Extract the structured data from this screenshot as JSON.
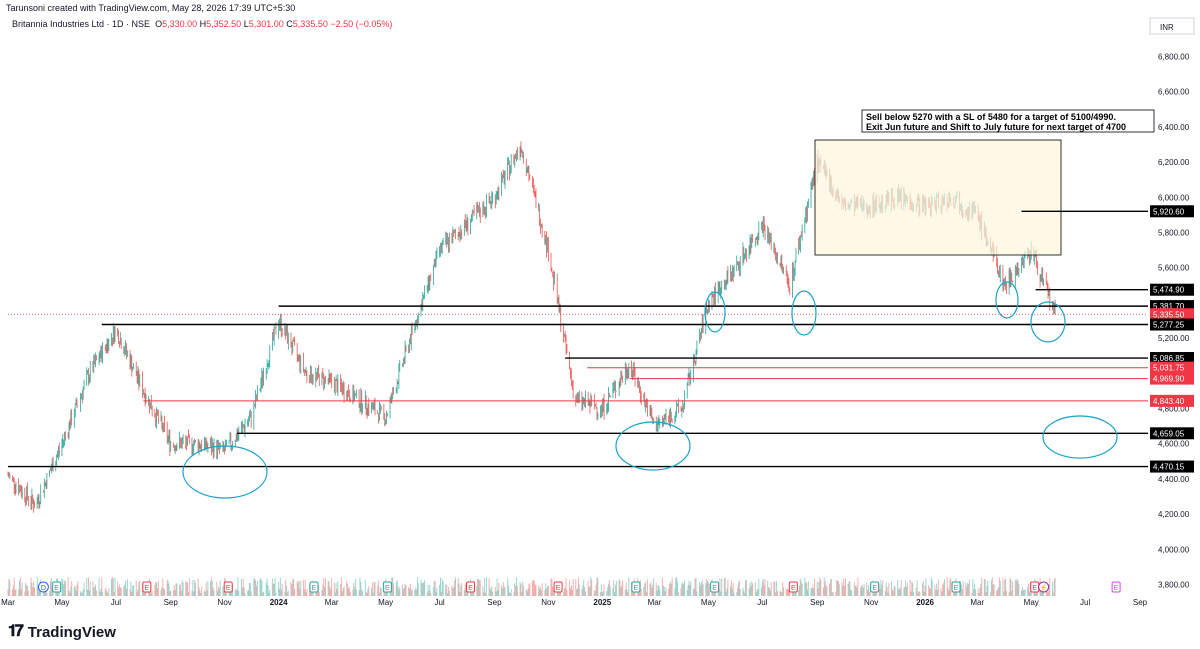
{
  "header": {
    "created_by": "Tarunsoni created with TradingView.com, May 28, 2026 17:39 UTC+5:30"
  },
  "symbol": {
    "name": "Britannia Industries Ltd · 1D · NSE",
    "open_label": "O",
    "open": "5,330.00",
    "high_label": "H",
    "high": "5,352.50",
    "low_label": "L",
    "low": "5,301.00",
    "close_label": "C",
    "close": "5,335.50",
    "change": "−2.50 (−0.05%)"
  },
  "currency": "INR",
  "logo": "TradingView",
  "annotation": {
    "line1": "Sell below 5270 with a SL of 5480 for a target of 5100/4990.",
    "line2": "Exit Jun future and Shift to July future for next target of 4700"
  },
  "colors": {
    "up": "#26a69a",
    "down": "#ef5350",
    "black_line": "#000000",
    "red_line": "#f23645",
    "circle": "#1aa3c7",
    "box_fill": "#fdf6dd"
  },
  "chart_data": {
    "type": "candlestick",
    "ylim": [
      3700,
      7000
    ],
    "y_ticks": [
      "3,800.00",
      "4,000.00",
      "4,200.00",
      "4,400.00",
      "4,600.00",
      "4,800.00",
      "5,000.00",
      "5,200.00",
      "5,400.00",
      "5,600.00",
      "5,800.00",
      "6,000.00",
      "6,200.00",
      "6,400.00",
      "6,600.00",
      "6,800.00"
    ],
    "y_tick_values": [
      3800,
      4000,
      4200,
      4400,
      4600,
      4800,
      5000,
      5200,
      5400,
      5600,
      5800,
      6000,
      6200,
      6400,
      6600,
      6800
    ],
    "x_labels": [
      "Mar",
      "May",
      "Jul",
      "Sep",
      "Nov",
      "2024",
      "Mar",
      "May",
      "Jul",
      "Sep",
      "Nov",
      "2025",
      "Mar",
      "May",
      "Jul",
      "Sep",
      "Nov",
      "2026",
      "Mar",
      "May",
      "Jul",
      "Sep"
    ],
    "x_label_dates": [
      "2023-03",
      "2023-05",
      "2023-07",
      "2023-09",
      "2023-11",
      "2024-01",
      "2024-03",
      "2024-05",
      "2024-07",
      "2024-09",
      "2024-11",
      "2025-01",
      "2025-03",
      "2025-05",
      "2025-07",
      "2025-09",
      "2025-11",
      "2026-01",
      "2026-03",
      "2026-05",
      "2026-07",
      "2026-09"
    ],
    "bold_x_labels": [
      "2024",
      "2025",
      "2026"
    ],
    "price_keypoints": [
      [
        "2023-03",
        4420
      ],
      [
        "2023-04",
        4250
      ],
      [
        "2023-05",
        4600
      ],
      [
        "2023-06",
        5000
      ],
      [
        "2023-07",
        5250
      ],
      [
        "2023-08",
        4900
      ],
      [
        "2023-09",
        4600
      ],
      [
        "2023-10",
        4600
      ],
      [
        "2023-11",
        4560
      ],
      [
        "2023-12",
        4750
      ],
      [
        "2024-01",
        5300
      ],
      [
        "2024-02",
        5000
      ],
      [
        "2024-03",
        4950
      ],
      [
        "2024-04",
        4850
      ],
      [
        "2024-05",
        4750
      ],
      [
        "2024-06",
        5250
      ],
      [
        "2024-07",
        5700
      ],
      [
        "2024-08",
        5850
      ],
      [
        "2024-09",
        6000
      ],
      [
        "2024-10",
        6300
      ],
      [
        "2024-11",
        5700
      ],
      [
        "2024-12",
        4850
      ],
      [
        "2025-01",
        4800
      ],
      [
        "2025-02",
        5050
      ],
      [
        "2025-03",
        4700
      ],
      [
        "2025-04",
        4800
      ],
      [
        "2025-05",
        5400
      ],
      [
        "2025-06",
        5600
      ],
      [
        "2025-07",
        5850
      ],
      [
        "2025-08",
        5500
      ],
      [
        "2025-09",
        6200
      ],
      [
        "2025-10",
        5950
      ],
      [
        "2025-11",
        5950
      ],
      [
        "2025-12",
        6000
      ],
      [
        "2026-01",
        5950
      ],
      [
        "2026-02",
        6000
      ],
      [
        "2026-03",
        5900
      ],
      [
        "2026-04",
        5500
      ],
      [
        "2026-05",
        5700
      ],
      [
        "2026-05-28",
        5335.5
      ]
    ],
    "support_resistance_lines": [
      {
        "label": "5,920.60",
        "value": 5920.6,
        "color": "black",
        "from": "2026-04-20"
      },
      {
        "label": "5,474.90",
        "value": 5474.9,
        "color": "black",
        "from": "2026-05-06"
      },
      {
        "label": "5,381.70",
        "value": 5381.7,
        "color": "black",
        "from": "2024-01-01"
      },
      {
        "label": "5,335.50",
        "value": 5335.5,
        "color": "red",
        "from": "2023-03-01",
        "dotted": true
      },
      {
        "label": "5,277.25",
        "value": 5277.25,
        "color": "black",
        "from": "2023-06-15"
      },
      {
        "label": "5,086.85",
        "value": 5086.85,
        "color": "black",
        "from": "2024-11-20"
      },
      {
        "label": "5,031.75",
        "value": 5031.75,
        "color": "red",
        "from": "2024-12-15"
      },
      {
        "label": "4,969.90",
        "value": 4969.9,
        "color": "red",
        "from": "2025-02-01"
      },
      {
        "label": "4,843.40",
        "value": 4843.4,
        "color": "red",
        "from": "2023-08-01"
      },
      {
        "label": "4,659.05",
        "value": 4659.05,
        "color": "black",
        "from": "2023-11-15"
      },
      {
        "label": "4,470.15",
        "value": 4470.15,
        "color": "black",
        "from": "2023-03-01"
      }
    ],
    "event_markers": [
      {
        "date": "2023-04-10",
        "letter": "D",
        "kind": "dividend"
      },
      {
        "date": "2023-04-25",
        "letter": "E",
        "kind": "earnings"
      },
      {
        "date": "2023-08-05",
        "letter": "E",
        "kind": "earnings"
      },
      {
        "date": "2023-11-05",
        "letter": "E",
        "kind": "earnings"
      },
      {
        "date": "2024-02-10",
        "letter": "E",
        "kind": "earnings"
      },
      {
        "date": "2024-05-03",
        "letter": "E",
        "kind": "earnings"
      },
      {
        "date": "2024-08-05",
        "letter": "E",
        "kind": "earnings"
      },
      {
        "date": "2024-11-12",
        "letter": "E",
        "kind": "earnings"
      },
      {
        "date": "2025-02-08",
        "letter": "E",
        "kind": "earnings"
      },
      {
        "date": "2025-05-08",
        "letter": "E",
        "kind": "earnings"
      },
      {
        "date": "2025-08-05",
        "letter": "E",
        "kind": "earnings"
      },
      {
        "date": "2025-11-05",
        "letter": "E",
        "kind": "earnings"
      },
      {
        "date": "2026-02-05",
        "letter": "E",
        "kind": "earnings"
      },
      {
        "date": "2026-05-05",
        "letter": "E",
        "kind": "earnings"
      },
      {
        "date": "2026-05-15",
        "letter": "⚡",
        "kind": "split"
      },
      {
        "date": "2026-08-05",
        "letter": "E",
        "kind": "earnings-future"
      }
    ],
    "grid": false
  }
}
